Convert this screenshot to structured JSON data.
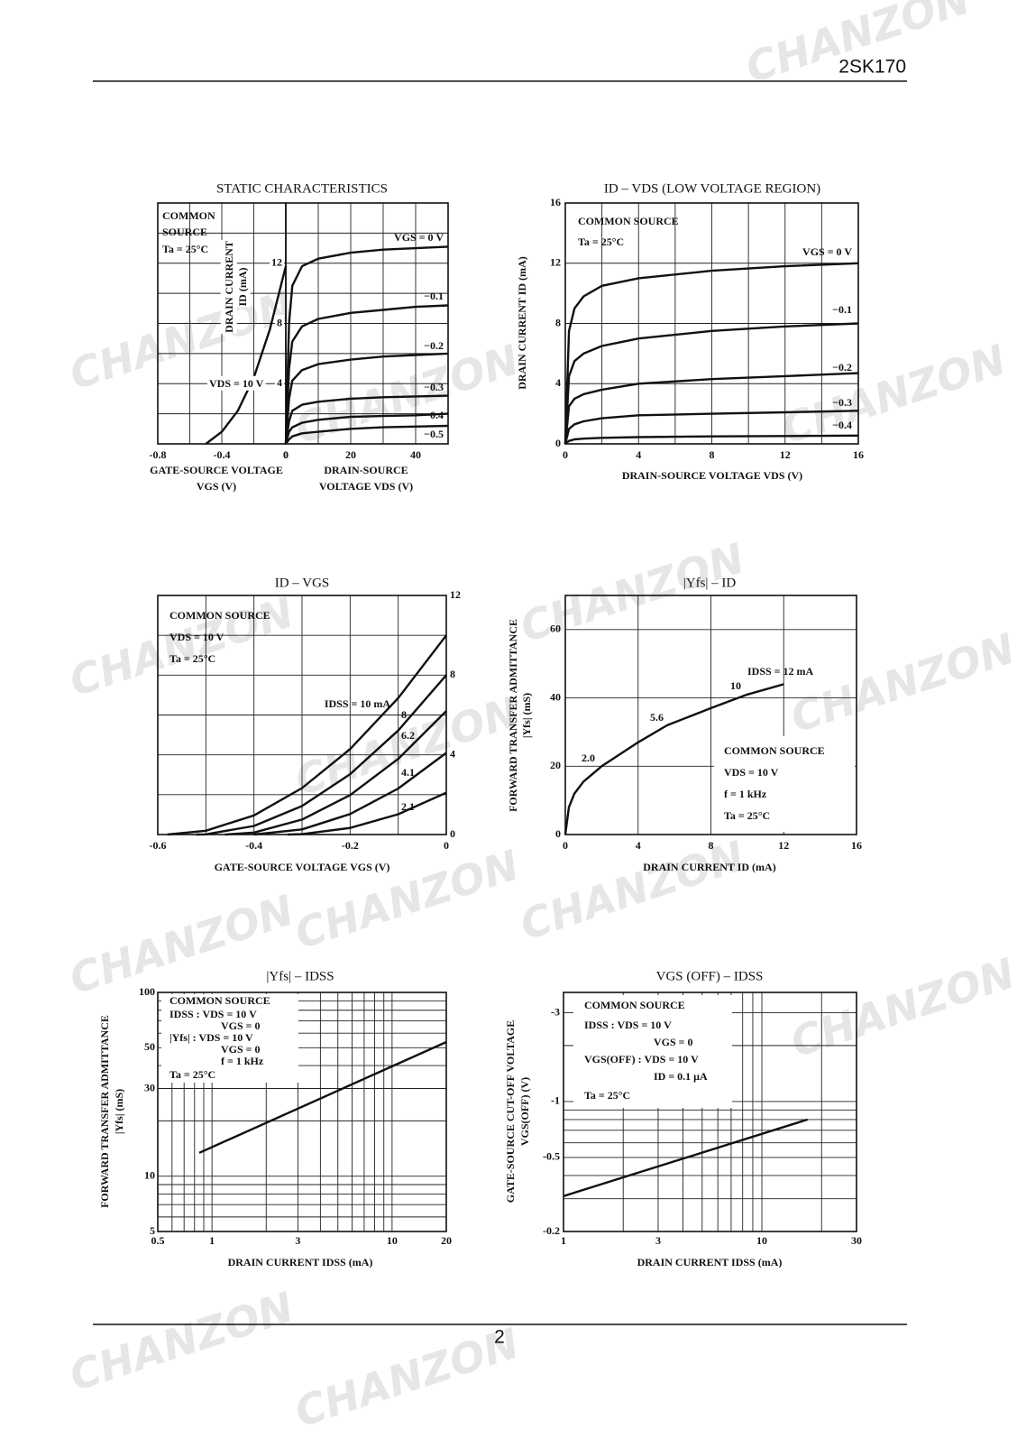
{
  "header": {
    "part": "2SK170"
  },
  "footer": {
    "page": "2"
  },
  "watermark": "CHANZON",
  "chart_data": [
    {
      "type": "line",
      "title": "STATIC CHARACTERISTICS",
      "color": "#111111",
      "xlabel": [
        "GATE-SOURCE VOLTAGE",
        "VGS (V)"
      ],
      "note": [
        "COMMON",
        "SOURCE",
        "Ta = 25°C"
      ],
      "annotations": [
        "VDS = 10 V"
      ],
      "xlim": [
        -0.8,
        0
      ],
      "ylim": [
        0,
        16
      ],
      "xticks": [
        -0.8,
        -0.4,
        0
      ],
      "xgrid": [
        -0.6,
        -0.2
      ],
      "ygrid": [
        2,
        4,
        6,
        8,
        10,
        12,
        14
      ],
      "x": [
        -0.5,
        -0.4,
        -0.3,
        -0.2,
        -0.1,
        0
      ],
      "series": [
        {
          "values": [
            0,
            0.8,
            2.2,
            4.4,
            7.6,
            11.8
          ]
        }
      ]
    },
    {
      "type": "line",
      "color": "#111111",
      "xlabel": [
        "DRAIN-SOURCE",
        "VOLTAGE VDS (V)"
      ],
      "ylabel": [
        "DRAIN CURRENT",
        "ID (mA)"
      ],
      "xlim": [
        0,
        50
      ],
      "ylim": [
        0,
        16
      ],
      "xticks": [
        0,
        20,
        40
      ],
      "yticks": [
        4,
        8,
        12
      ],
      "xgrid": [
        10,
        30
      ],
      "ygrid": [
        2,
        6,
        10,
        14
      ],
      "x": [
        0,
        1,
        2,
        5,
        10,
        20,
        30,
        40,
        50
      ],
      "series": [
        {
          "name": "VGS = 0 V",
          "values": [
            0,
            8,
            10.5,
            11.8,
            12.3,
            12.7,
            12.9,
            13.0,
            13.1
          ]
        },
        {
          "name": "−0.1",
          "values": [
            0,
            5,
            6.8,
            7.8,
            8.3,
            8.7,
            8.9,
            9.1,
            9.2
          ]
        },
        {
          "name": "−0.2",
          "values": [
            0,
            3,
            4.2,
            4.9,
            5.3,
            5.6,
            5.8,
            5.9,
            6.0
          ]
        },
        {
          "name": "−0.3",
          "values": [
            0,
            1.5,
            2.2,
            2.6,
            2.8,
            3.0,
            3.1,
            3.15,
            3.2
          ]
        },
        {
          "name": "−0.4",
          "values": [
            0,
            0.8,
            1.1,
            1.4,
            1.6,
            1.8,
            1.85,
            1.9,
            2.0
          ]
        },
        {
          "name": "−0.5",
          "values": [
            0,
            0.3,
            0.5,
            0.7,
            0.8,
            1.0,
            1.1,
            1.15,
            1.2
          ]
        }
      ]
    },
    {
      "type": "line",
      "title": "ID – VDS (LOW VOLTAGE REGION)",
      "color": "#111111",
      "xlabel": [
        "DRAIN-SOURCE VOLTAGE VDS (V)"
      ],
      "ylabel": [
        "DRAIN CURRENT ID (mA)"
      ],
      "note": [
        "COMMON SOURCE",
        "Ta = 25°C"
      ],
      "xlim": [
        0,
        16
      ],
      "ylim": [
        0,
        16
      ],
      "xticks": [
        0,
        4,
        8,
        12,
        16
      ],
      "yticks": [
        0,
        4,
        8,
        12,
        16
      ],
      "xgrid": [
        2,
        6,
        10,
        14
      ],
      "x": [
        0,
        0.2,
        0.5,
        1,
        2,
        4,
        8,
        12,
        16
      ],
      "series": [
        {
          "name": "VGS = 0 V",
          "values": [
            0,
            7.5,
            9,
            9.8,
            10.5,
            11,
            11.5,
            11.8,
            12
          ]
        },
        {
          "name": "−0.1",
          "values": [
            0,
            4.5,
            5.5,
            6,
            6.5,
            7,
            7.5,
            7.8,
            8
          ]
        },
        {
          "name": "−0.2",
          "values": [
            0,
            2.5,
            3,
            3.3,
            3.6,
            4,
            4.3,
            4.5,
            4.7
          ]
        },
        {
          "name": "−0.3",
          "values": [
            0,
            1,
            1.3,
            1.5,
            1.7,
            1.9,
            2.0,
            2.1,
            2.2
          ]
        },
        {
          "name": "−0.4",
          "values": [
            0,
            0.2,
            0.3,
            0.35,
            0.4,
            0.45,
            0.5,
            0.52,
            0.55
          ]
        }
      ]
    },
    {
      "type": "line",
      "title": "ID – VGS",
      "color": "#111111",
      "xlabel": [
        "GATE-SOURCE VOLTAGE VGS (V)"
      ],
      "note": [
        "COMMON SOURCE",
        "VDS = 10 V",
        "Ta = 25°C"
      ],
      "xlim": [
        -0.6,
        0
      ],
      "ylim": [
        0,
        12
      ],
      "xticks": [
        -0.6,
        -0.4,
        -0.2,
        0
      ],
      "yticks": [
        0,
        4,
        8,
        12
      ],
      "xgrid": [
        -0.5,
        -0.3,
        -0.1
      ],
      "ygrid": [
        2,
        6,
        10
      ],
      "series": [
        {
          "name": "IDSS = 10 mA",
          "x": [
            -0.58,
            -0.5,
            -0.4,
            -0.3,
            -0.2,
            -0.1,
            0
          ],
          "values": [
            0,
            0.19,
            0.96,
            2.33,
            4.29,
            6.85,
            10
          ]
        },
        {
          "name": "8",
          "x": [
            -0.52,
            -0.5,
            -0.4,
            -0.3,
            -0.2,
            -0.1,
            0
          ],
          "values": [
            0,
            0.01,
            0.43,
            1.43,
            3.03,
            5.22,
            8
          ]
        },
        {
          "name": "6.2",
          "x": [
            -0.46,
            -0.4,
            -0.3,
            -0.2,
            -0.1,
            0
          ],
          "values": [
            0,
            0.1,
            0.75,
            1.98,
            3.8,
            6.2
          ]
        },
        {
          "name": "4.1",
          "x": [
            -0.4,
            -0.3,
            -0.2,
            -0.1,
            0
          ],
          "values": [
            0,
            0.26,
            1.03,
            2.31,
            4.1
          ]
        },
        {
          "name": "2.1",
          "x": [
            -0.33,
            -0.3,
            -0.2,
            -0.1,
            0
          ],
          "values": [
            0,
            0.02,
            0.33,
            1.02,
            2.1
          ]
        }
      ]
    },
    {
      "type": "line",
      "title": "|Yfs| – ID",
      "color": "#111111",
      "xlabel": [
        "DRAIN CURRENT ID (mA)"
      ],
      "ylabel": [
        "FORWARD TRANSFER ADMITTANCE",
        "|Yfs| (mS)"
      ],
      "note": [
        "COMMON SOURCE",
        "VDS = 10 V",
        "f = 1 kHz",
        "Ta = 25°C"
      ],
      "annotations": [
        "2.0",
        "5.6",
        "10",
        "IDSS = 12 mA"
      ],
      "xlim": [
        0,
        16
      ],
      "ylim": [
        0,
        70
      ],
      "xticks": [
        0,
        4,
        8,
        12,
        16
      ],
      "yticks": [
        0,
        20,
        40,
        60
      ],
      "x": [
        0,
        0.2,
        0.5,
        1,
        2,
        4,
        5.6,
        8,
        10,
        12
      ],
      "series": [
        {
          "values": [
            0,
            8,
            12,
            15.5,
            20,
            27,
            32,
            37,
            41,
            44
          ]
        }
      ]
    },
    {
      "type": "line",
      "title": "|Yfs| – IDSS",
      "color": "#111111",
      "xscale": "log",
      "yscale": "log",
      "xlabel": [
        "DRAIN CURRENT IDSS (mA)"
      ],
      "ylabel": [
        "FORWARD TRANSFER ADMITTANCE",
        "|Yfs| (mS)"
      ],
      "note": [
        "COMMON SOURCE",
        "IDSS   : VDS = 10 V",
        "VGS = 0",
        "|Yfs|  : VDS = 10 V",
        "VGS = 0",
        "f = 1 kHz",
        "Ta = 25°C"
      ],
      "xlim": [
        0.5,
        20
      ],
      "ylim": [
        5,
        100
      ],
      "xticks": [
        0.5,
        1,
        3,
        10,
        20
      ],
      "yticks": [
        5,
        10,
        30,
        50,
        100
      ],
      "xgrid": [
        0.6,
        0.7,
        0.8,
        0.9,
        2,
        4,
        5,
        6,
        7,
        8,
        9
      ],
      "ygrid": [
        6,
        7,
        8,
        9,
        20,
        40,
        60,
        70,
        80,
        90
      ],
      "x": [
        0.85,
        20
      ],
      "series": [
        {
          "values": [
            13.4,
            53.7
          ]
        }
      ]
    },
    {
      "type": "line",
      "title": "VGS (OFF) – IDSS",
      "color": "#111111",
      "xscale": "log",
      "yscale": "log",
      "xlabel": [
        "DRAIN CURRENT IDSS (mA)"
      ],
      "ylabel": [
        "GATE-SOURCE CUT-OFF VOLTAGE",
        "VGS(OFF) (V)"
      ],
      "note": [
        "COMMON SOURCE",
        "IDSS          : VDS = 10 V",
        "VGS = 0",
        "VGS(OFF) : VDS = 10 V",
        "ID = 0.1 μA",
        "Ta = 25°C"
      ],
      "xlim": [
        1,
        30
      ],
      "ylim": [
        -0.2,
        -3.86
      ],
      "xticks": [
        1,
        3,
        10,
        30
      ],
      "yticks": [
        -0.2,
        -0.5,
        -1,
        -3
      ],
      "xgrid": [
        2,
        4,
        5,
        6,
        7,
        8,
        9,
        20
      ],
      "ygrid": [
        -0.3,
        -0.4,
        -0.6,
        -0.7,
        -0.8,
        -0.9,
        -2
      ],
      "x": [
        1,
        17
      ],
      "series": [
        {
          "values": [
            -0.31,
            -0.8
          ]
        }
      ]
    }
  ]
}
